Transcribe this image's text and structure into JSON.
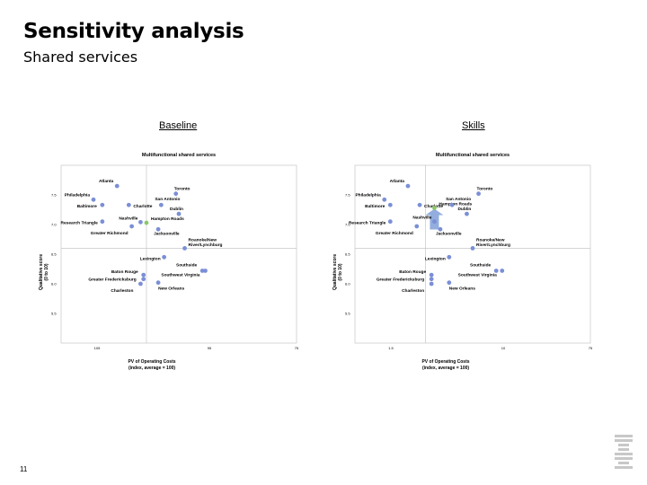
{
  "header": {
    "title": "Sensitivity analysis",
    "subtitle": "Shared services"
  },
  "footer": {
    "page_number": "11"
  },
  "colors": {
    "point": "#7b8fd6",
    "highlight": "#8cc86a",
    "arrow": "#7f9fd8",
    "axis": "#bdbdbd"
  },
  "chart_data": [
    {
      "type": "scatter",
      "panel_label": "Baseline",
      "title": "Multifunctional shared services",
      "xlabel": "PV of Operating Costs",
      "xlabel2": "(index, average = 100)",
      "ylabel": "Qualitative score",
      "ylabel2": "(0 to 10)",
      "xlim": [
        110,
        70
      ],
      "ylim": [
        5.0,
        8.0
      ],
      "xticks": [
        "105",
        "95",
        "75"
      ],
      "yticks": [
        "7.5",
        "7.0",
        "6.5",
        "6.0",
        "5.5"
      ],
      "ref_x": 95.5,
      "ref_y": 6.6,
      "points": [
        {
          "name": "Atlanta",
          "x": 100.5,
          "y": 7.65
        },
        {
          "name": "Toronto",
          "x": 90.5,
          "y": 7.52
        },
        {
          "name": "Philadelphia",
          "x": 104.5,
          "y": 7.42
        },
        {
          "name": "Baltimore",
          "x": 103,
          "y": 7.33
        },
        {
          "name": "Charlotte",
          "x": 98.5,
          "y": 7.33
        },
        {
          "name": "San Antonio",
          "x": 93,
          "y": 7.33
        },
        {
          "name": "Dublin",
          "x": 90,
          "y": 7.18
        },
        {
          "name": "Nashville",
          "x": 96.5,
          "y": 7.04
        },
        {
          "name": "Hampton Roads",
          "x": 95.5,
          "y": 7.03,
          "highlight": true
        },
        {
          "name": "Research Triangle",
          "x": 103,
          "y": 7.05
        },
        {
          "name": "Greater Richmond",
          "x": 98,
          "y": 6.97
        },
        {
          "name": "Jacksonville",
          "x": 93.5,
          "y": 6.92
        },
        {
          "name": "Roanoke/New River/Lynchburg",
          "x": 89,
          "y": 6.6
        },
        {
          "name": "Lexington",
          "x": 92.5,
          "y": 6.45
        },
        {
          "name": "Southside",
          "x": 86,
          "y": 6.22
        },
        {
          "name": "Southwest Virginia",
          "x": 85.5,
          "y": 6.22
        },
        {
          "name": "Baton Rouge",
          "x": 96,
          "y": 6.15
        },
        {
          "name": "Greater Fredericksburg",
          "x": 96,
          "y": 6.08
        },
        {
          "name": "Charleston",
          "x": 96.5,
          "y": 6.0
        },
        {
          "name": "New Orleans",
          "x": 93.5,
          "y": 6.02
        }
      ]
    },
    {
      "type": "scatter",
      "panel_label": "Skills",
      "title": "Multifunctional shared services",
      "xlabel": "PV of Operating Costs",
      "xlabel2": "(index, average = 100)",
      "ylabel": "Qualitative score",
      "ylabel2": "(0 to 10)",
      "xlim": [
        115,
        75
      ],
      "ylim": [
        5.0,
        8.0
      ],
      "xticks": [
        "1.5",
        "10",
        "75"
      ],
      "yticks": [
        "7.5",
        "7.0",
        "6.5",
        "6.0",
        "5.5"
      ],
      "ref_x": 103,
      "ref_y": 6.6,
      "points": [
        {
          "name": "Atlanta",
          "x": 106,
          "y": 7.65
        },
        {
          "name": "Toronto",
          "x": 94,
          "y": 7.52
        },
        {
          "name": "Philadelphia",
          "x": 110,
          "y": 7.42
        },
        {
          "name": "Baltimore",
          "x": 109,
          "y": 7.33
        },
        {
          "name": "Charlotte",
          "x": 104,
          "y": 7.33
        },
        {
          "name": "Hampton Roads",
          "x": 101.5,
          "y": 7.28,
          "highlight": true
        },
        {
          "name": "San Antonio",
          "x": 98.5,
          "y": 7.33
        },
        {
          "name": "Dublin",
          "x": 96,
          "y": 7.18
        },
        {
          "name": "Nashville",
          "x": 101.5,
          "y": 7.05
        },
        {
          "name": "Research Triangle",
          "x": 109,
          "y": 7.05
        },
        {
          "name": "Greater Richmond",
          "x": 104.5,
          "y": 6.97
        },
        {
          "name": "Jacksonville",
          "x": 100.5,
          "y": 6.92
        },
        {
          "name": "Roanoke/New River/Lynchburg",
          "x": 95,
          "y": 6.6
        },
        {
          "name": "Lexington",
          "x": 99,
          "y": 6.45
        },
        {
          "name": "Southside",
          "x": 91,
          "y": 6.22
        },
        {
          "name": "Southwest Virginia",
          "x": 90,
          "y": 6.22
        },
        {
          "name": "Baton Rouge",
          "x": 102,
          "y": 6.15
        },
        {
          "name": "Greater Fredericksburg",
          "x": 102,
          "y": 6.08
        },
        {
          "name": "Charleston",
          "x": 102,
          "y": 6.0
        },
        {
          "name": "New Orleans",
          "x": 99,
          "y": 6.02
        }
      ]
    }
  ]
}
